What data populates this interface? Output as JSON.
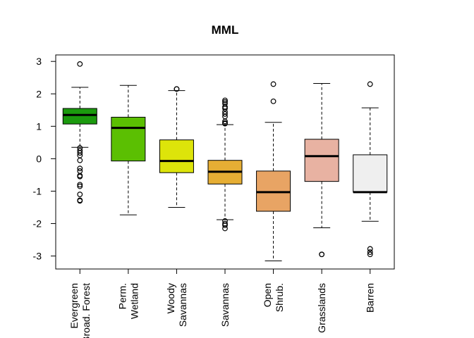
{
  "chart_data": {
    "type": "boxplot",
    "title": "MML",
    "xlabel": "",
    "ylabel": "",
    "ylim": [
      -3.4,
      3.2
    ],
    "yticks": [
      -3,
      -2,
      -1,
      0,
      1,
      2,
      3
    ],
    "grid": false,
    "legend": "none",
    "categories": [
      "Evergreen\nBroad. Forest",
      "Perm.\nWetland",
      "Woody\nSavannas",
      "Savannas",
      "Open\nShrub.",
      "Grasslands",
      "Barren"
    ],
    "series": [
      {
        "color": "#1b9a0e",
        "whisker_low": 0.35,
        "q1": 1.07,
        "median": 1.35,
        "q3": 1.55,
        "whisker_high": 2.2,
        "outliers": [
          2.92,
          0.33,
          0.25,
          0.18,
          0.1,
          -0.05,
          -0.3,
          -0.38,
          -0.52,
          -0.55,
          -0.8,
          -0.85,
          -1.1,
          -1.28,
          -1.3
        ]
      },
      {
        "color": "#5bbf02",
        "whisker_low": -1.73,
        "q1": -0.07,
        "median": 0.95,
        "q3": 1.28,
        "whisker_high": 2.26,
        "outliers": []
      },
      {
        "color": "#dde40a",
        "whisker_low": -1.5,
        "q1": -0.43,
        "median": -0.07,
        "q3": 0.58,
        "whisker_high": 2.1,
        "outliers": [
          2.15,
          2.15
        ]
      },
      {
        "color": "#e6ae34",
        "whisker_low": -1.88,
        "q1": -0.78,
        "median": -0.4,
        "q3": -0.05,
        "whisker_high": 1.05,
        "outliers": [
          1.8,
          1.75,
          1.7,
          1.6,
          1.55,
          1.45,
          1.38,
          1.3,
          1.15,
          1.1,
          1.08,
          -1.92,
          -2.0,
          -2.05,
          -2.15
        ]
      },
      {
        "color": "#e8a464",
        "whisker_low": -3.15,
        "q1": -1.62,
        "median": -1.03,
        "q3": -0.38,
        "whisker_high": 1.12,
        "outliers": [
          2.3,
          1.77
        ]
      },
      {
        "color": "#e8b2a2",
        "whisker_low": -2.13,
        "q1": -0.7,
        "median": 0.08,
        "q3": 0.6,
        "whisker_high": 2.32,
        "outliers": [
          -2.95,
          -2.95
        ]
      },
      {
        "color": "#efefef",
        "whisker_low": -1.93,
        "q1": -1.03,
        "median": -1.03,
        "q3": 0.12,
        "whisker_high": 1.57,
        "outliers": [
          2.3,
          -2.78,
          -2.88,
          -2.95
        ]
      }
    ]
  }
}
